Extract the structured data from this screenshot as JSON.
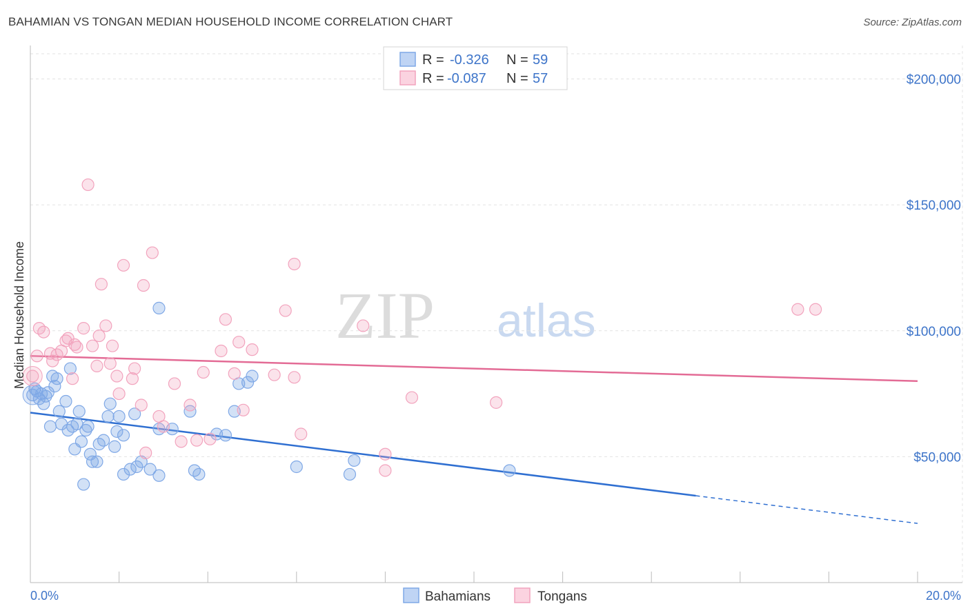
{
  "title": "BAHAMIAN VS TONGAN MEDIAN HOUSEHOLD INCOME CORRELATION CHART",
  "source": "Source: ZipAtlas.com",
  "watermark": {
    "zip": "ZIP",
    "atlas": "atlas"
  },
  "colors": {
    "blue": "#7fa8e6",
    "blue_line": "#2f6fd1",
    "pink": "#f2a3bd",
    "pink_line": "#e36b95",
    "tick_text": "#3d74c9"
  },
  "legend": {
    "rows": [
      {
        "r_label": "R =",
        "r_value": "-0.326",
        "n_label": "N =",
        "n_value": "59"
      },
      {
        "r_label": "R =",
        "r_value": "-0.087",
        "n_label": "N =",
        "n_value": "57"
      }
    ]
  },
  "bottom_legend": [
    "Bahamians",
    "Tongans"
  ],
  "chart_data": {
    "type": "scatter",
    "title": "BAHAMIAN VS TONGAN MEDIAN HOUSEHOLD INCOME CORRELATION CHART",
    "xlabel": "",
    "ylabel": "Median Household Income",
    "xlim": [
      0,
      20
    ],
    "ylim": [
      0,
      210000
    ],
    "x_tick_labels": [
      "0.0%",
      "20.0%"
    ],
    "y_tick_values": [
      50000,
      100000,
      150000,
      200000
    ],
    "y_tick_labels": [
      "$50,000",
      "$100,000",
      "$150,000",
      "$200,000"
    ],
    "grid": true,
    "legend_position": "top-center",
    "series": [
      {
        "name": "Bahamians",
        "color": "#7fa8e6",
        "trend": {
          "x": [
            0,
            15
          ],
          "y": [
            67500,
            34500
          ],
          "dashed_to": [
            20,
            23500
          ]
        },
        "points": [
          [
            0.05,
            74500
          ],
          [
            0.1,
            77000
          ],
          [
            0.15,
            76000
          ],
          [
            0.2,
            73000
          ],
          [
            0.25,
            75000
          ],
          [
            0.3,
            71000
          ],
          [
            0.35,
            74000
          ],
          [
            0.4,
            75500
          ],
          [
            0.45,
            62000
          ],
          [
            0.5,
            82000
          ],
          [
            0.55,
            78000
          ],
          [
            0.6,
            81000
          ],
          [
            0.65,
            68000
          ],
          [
            0.7,
            63000
          ],
          [
            0.8,
            72000
          ],
          [
            0.85,
            60500
          ],
          [
            0.9,
            85000
          ],
          [
            0.95,
            62000
          ],
          [
            1.0,
            53000
          ],
          [
            1.05,
            63000
          ],
          [
            1.1,
            68000
          ],
          [
            1.15,
            56000
          ],
          [
            1.2,
            39000
          ],
          [
            1.25,
            60500
          ],
          [
            1.3,
            62000
          ],
          [
            1.35,
            51000
          ],
          [
            1.4,
            48000
          ],
          [
            1.5,
            48000
          ],
          [
            1.55,
            55000
          ],
          [
            1.65,
            56500
          ],
          [
            1.75,
            66000
          ],
          [
            1.8,
            71000
          ],
          [
            1.9,
            54000
          ],
          [
            1.95,
            60000
          ],
          [
            2.0,
            66000
          ],
          [
            2.1,
            58500
          ],
          [
            2.1,
            43000
          ],
          [
            2.25,
            45000
          ],
          [
            2.35,
            67000
          ],
          [
            2.4,
            46000
          ],
          [
            2.5,
            48000
          ],
          [
            2.7,
            45000
          ],
          [
            2.9,
            61000
          ],
          [
            2.9,
            42500
          ],
          [
            3.2,
            61000
          ],
          [
            3.6,
            68000
          ],
          [
            3.7,
            44500
          ],
          [
            3.8,
            43000
          ],
          [
            4.2,
            59000
          ],
          [
            4.4,
            58500
          ],
          [
            4.6,
            68000
          ],
          [
            4.7,
            79000
          ],
          [
            4.9,
            79500
          ],
          [
            5.0,
            82000
          ],
          [
            6.0,
            46000
          ],
          [
            7.2,
            43000
          ],
          [
            7.3,
            48500
          ],
          [
            10.8,
            44500
          ],
          [
            2.9,
            109000
          ]
        ]
      },
      {
        "name": "Tongans",
        "color": "#f2a3bd",
        "trend": {
          "x": [
            0,
            20
          ],
          "y": [
            90000,
            80000
          ]
        },
        "points": [
          [
            0.05,
            82000
          ],
          [
            0.15,
            90000
          ],
          [
            0.2,
            101000
          ],
          [
            0.3,
            99500
          ],
          [
            0.45,
            91000
          ],
          [
            0.5,
            88000
          ],
          [
            0.6,
            90500
          ],
          [
            0.7,
            92000
          ],
          [
            0.8,
            96000
          ],
          [
            0.85,
            97000
          ],
          [
            0.95,
            81000
          ],
          [
            1.0,
            94500
          ],
          [
            1.05,
            93500
          ],
          [
            1.2,
            101000
          ],
          [
            1.3,
            158000
          ],
          [
            1.4,
            94000
          ],
          [
            1.5,
            86000
          ],
          [
            1.55,
            98000
          ],
          [
            1.6,
            118500
          ],
          [
            1.7,
            102000
          ],
          [
            1.8,
            87000
          ],
          [
            1.85,
            94000
          ],
          [
            1.95,
            82000
          ],
          [
            2.0,
            75000
          ],
          [
            2.1,
            126000
          ],
          [
            2.3,
            81000
          ],
          [
            2.35,
            85000
          ],
          [
            2.5,
            70500
          ],
          [
            2.55,
            118000
          ],
          [
            2.6,
            51500
          ],
          [
            2.75,
            131000
          ],
          [
            2.9,
            66000
          ],
          [
            3.0,
            62000
          ],
          [
            3.25,
            79000
          ],
          [
            3.4,
            56000
          ],
          [
            3.6,
            70500
          ],
          [
            3.75,
            56500
          ],
          [
            3.9,
            83500
          ],
          [
            4.05,
            57000
          ],
          [
            4.3,
            92000
          ],
          [
            4.4,
            104500
          ],
          [
            4.6,
            83000
          ],
          [
            4.7,
            95500
          ],
          [
            4.8,
            68500
          ],
          [
            5.0,
            92500
          ],
          [
            5.5,
            82500
          ],
          [
            5.75,
            108000
          ],
          [
            5.95,
            81500
          ],
          [
            5.95,
            126500
          ],
          [
            6.1,
            59000
          ],
          [
            7.5,
            102000
          ],
          [
            8.0,
            51000
          ],
          [
            8.0,
            44500
          ],
          [
            8.6,
            73500
          ],
          [
            10.5,
            71500
          ],
          [
            17.3,
            108500
          ],
          [
            17.7,
            108500
          ]
        ]
      }
    ]
  }
}
